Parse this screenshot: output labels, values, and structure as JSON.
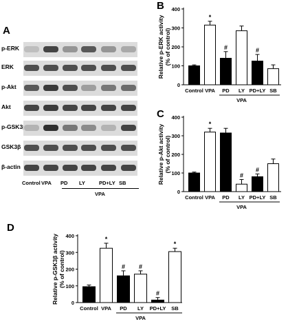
{
  "panels": {
    "a": "A",
    "b": "B",
    "c": "C",
    "d": "D"
  },
  "blot": {
    "rows": [
      {
        "label": "p-ERK",
        "intensities": [
          0.15,
          0.75,
          0.35,
          0.65,
          0.35,
          0.25
        ]
      },
      {
        "label": "ERK",
        "intensities": [
          0.7,
          0.7,
          0.7,
          0.7,
          0.7,
          0.7
        ]
      },
      {
        "label": "p-Akt",
        "intensities": [
          0.65,
          0.8,
          0.7,
          0.3,
          0.5,
          0.55
        ]
      },
      {
        "label": "Akt",
        "intensities": [
          0.75,
          0.8,
          0.75,
          0.75,
          0.75,
          0.75
        ]
      },
      {
        "label": "p-GSK3β",
        "intensities": [
          0.2,
          0.85,
          0.5,
          0.4,
          0.2,
          0.75
        ]
      },
      {
        "label": "GSK3β",
        "intensities": [
          0.7,
          0.7,
          0.7,
          0.7,
          0.7,
          0.7
        ]
      },
      {
        "label": "β-actin",
        "intensities": [
          0.75,
          0.75,
          0.75,
          0.75,
          0.75,
          0.75
        ]
      }
    ],
    "lanes": [
      "Control",
      "VPA",
      "PD",
      "LY",
      "PD+LY",
      "SB"
    ],
    "group_label": "VPA"
  },
  "chart_data": [
    {
      "type": "bar",
      "panel": "B",
      "categories": [
        "Control",
        "VPA",
        "PD",
        "LY",
        "PD+LY",
        "SB"
      ],
      "values": [
        100,
        315,
        140,
        285,
        125,
        85
      ],
      "errors": [
        5,
        20,
        35,
        25,
        35,
        20
      ],
      "fills": [
        "black",
        "white",
        "black",
        "white",
        "black",
        "white"
      ],
      "annotations": [
        "",
        "*",
        "#",
        "",
        "#",
        ""
      ],
      "ylabel": "Relative p-ERK activity (% of control)",
      "yticks": [
        "0",
        "100",
        "200",
        "300",
        "400"
      ],
      "ylim": [
        0,
        400
      ],
      "group_label": "VPA"
    },
    {
      "type": "bar",
      "panel": "C",
      "categories": [
        "Control",
        "VPA",
        "PD",
        "LY",
        "PD+LY",
        "SB"
      ],
      "values": [
        100,
        320,
        315,
        40,
        80,
        150
      ],
      "errors": [
        5,
        20,
        25,
        25,
        15,
        25
      ],
      "fills": [
        "black",
        "white",
        "black",
        "white",
        "black",
        "white"
      ],
      "annotations": [
        "",
        "*",
        "",
        "#",
        "#",
        ""
      ],
      "ylabel": "Relative p-Akt activity (% of control)",
      "yticks": [
        "0",
        "100",
        "200",
        "300",
        "400"
      ],
      "ylim": [
        0,
        400
      ],
      "group_label": "VPA"
    },
    {
      "type": "bar",
      "panel": "D",
      "categories": [
        "Control",
        "VPA",
        "PD",
        "LY",
        "PD+LY",
        "SB"
      ],
      "values": [
        95,
        325,
        160,
        170,
        15,
        305
      ],
      "errors": [
        10,
        30,
        30,
        20,
        15,
        20
      ],
      "fills": [
        "black",
        "white",
        "black",
        "white",
        "black",
        "white"
      ],
      "annotations": [
        "",
        "*",
        "#",
        "#",
        "#",
        "*"
      ],
      "ylabel": "Relative p-GSK3β activity (% of control)",
      "yticks": [
        "0",
        "100",
        "200",
        "300",
        "400"
      ],
      "ylim": [
        0,
        400
      ],
      "group_label": "VPA"
    }
  ]
}
